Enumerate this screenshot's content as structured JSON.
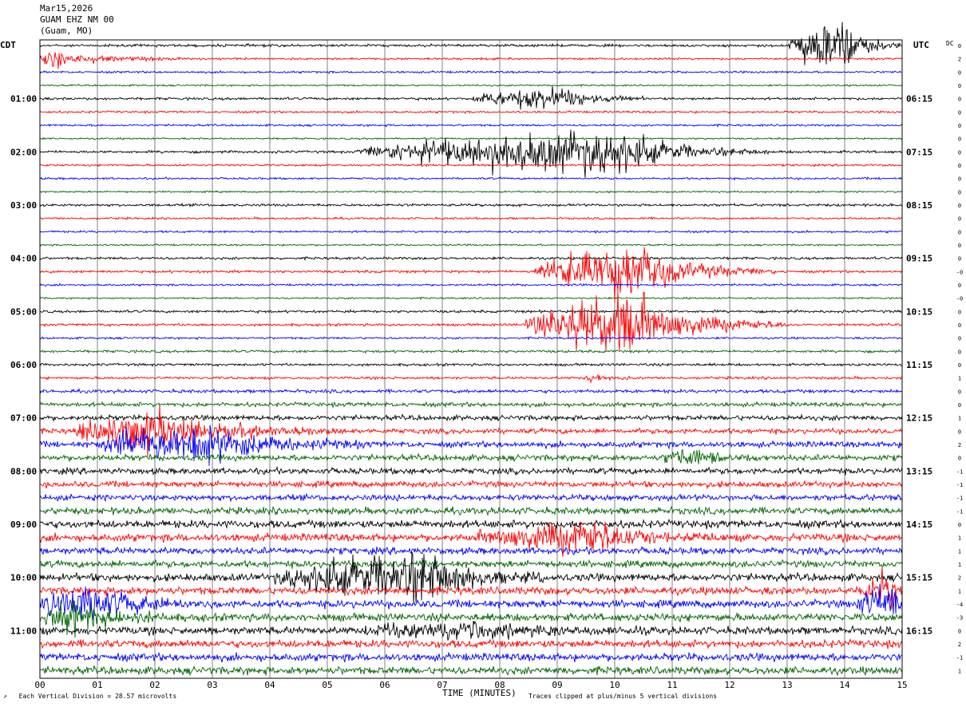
{
  "header": {
    "date": "Mar15,2026",
    "station": "GUAM EHZ NM 00",
    "location": "(Guam, MO)"
  },
  "left_axis_label": "CDT",
  "right_axis_label": "UTC",
  "dc_label": "DC",
  "footer": {
    "left": "Each Vertical Division =   28.57 microvolts",
    "right": "Traces clipped at plus/minus 5 vertical divisions"
  },
  "colors": {
    "black": "#000000",
    "red": "#ff0000",
    "blue": "#0000ff",
    "green": "#006400",
    "grid": "#808080"
  },
  "chart_data": {
    "type": "line",
    "xlabel": "TIME (MINUTES)",
    "xlim": [
      0,
      15
    ],
    "x_ticks": [
      "00",
      "01",
      "02",
      "03",
      "04",
      "05",
      "06",
      "07",
      "08",
      "09",
      "10",
      "11",
      "12",
      "13",
      "14",
      "15"
    ],
    "trace_count": 48,
    "minutes_per_trace": 15,
    "trace_color_cycle": [
      "black",
      "red",
      "blue",
      "green"
    ],
    "left_time_labels": [
      {
        "trace": 4,
        "label": "01:00"
      },
      {
        "trace": 8,
        "label": "02:00"
      },
      {
        "trace": 12,
        "label": "03:00"
      },
      {
        "trace": 16,
        "label": "04:00"
      },
      {
        "trace": 20,
        "label": "05:00"
      },
      {
        "trace": 24,
        "label": "06:00"
      },
      {
        "trace": 28,
        "label": "07:00"
      },
      {
        "trace": 32,
        "label": "08:00"
      },
      {
        "trace": 36,
        "label": "09:00"
      },
      {
        "trace": 40,
        "label": "10:00"
      },
      {
        "trace": 44,
        "label": "11:00"
      }
    ],
    "right_time_labels": [
      {
        "trace": 4,
        "label": "06:15"
      },
      {
        "trace": 8,
        "label": "07:15"
      },
      {
        "trace": 12,
        "label": "08:15"
      },
      {
        "trace": 16,
        "label": "09:15"
      },
      {
        "trace": 20,
        "label": "10:15"
      },
      {
        "trace": 24,
        "label": "11:15"
      },
      {
        "trace": 28,
        "label": "12:15"
      },
      {
        "trace": 32,
        "label": "13:15"
      },
      {
        "trace": 36,
        "label": "14:15"
      },
      {
        "trace": 40,
        "label": "15:15"
      },
      {
        "trace": 44,
        "label": "16:15"
      }
    ],
    "dc_offsets": [
      "0",
      "2",
      "0",
      "0",
      "0",
      "0",
      "0",
      "0",
      "0",
      "0",
      "0",
      "0",
      "0",
      "0",
      "0",
      "0",
      "0",
      "-0",
      "0",
      "-0",
      "0",
      "0",
      "0",
      "0",
      "0",
      "1",
      "0",
      "0",
      "1",
      "0",
      "2",
      "0",
      "-1",
      "-1",
      "-1",
      "-1",
      "0",
      "1",
      "1",
      "1",
      "2",
      "1",
      "-4",
      "-3",
      "0",
      "2",
      "-1",
      "1"
    ],
    "noise_levels": [
      1.5,
      1.2,
      1.2,
      1.0,
      1.5,
      1.2,
      1.2,
      1.0,
      1.5,
      1.2,
      1.2,
      1.0,
      1.5,
      1.2,
      1.2,
      1.0,
      1.5,
      1.5,
      1.2,
      1.0,
      1.5,
      1.5,
      1.2,
      1.5,
      1.5,
      1.5,
      2.0,
      2.5,
      3.0,
      3.0,
      3.5,
      3.5,
      3.5,
      3.5,
      3.5,
      4.0,
      4.5,
      4.5,
      4.0,
      4.0,
      4.5,
      4.5,
      4.5,
      4.5,
      4.5,
      4.5,
      4.5,
      4.5
    ],
    "events": [
      {
        "trace": 0,
        "start": 13.0,
        "peak": 13.9,
        "end": 15.0,
        "amplitude": 45
      },
      {
        "trace": 1,
        "start": 0.0,
        "peak": 0.1,
        "end": 2.5,
        "amplitude": 14
      },
      {
        "trace": 4,
        "start": 7.5,
        "peak": 9.0,
        "end": 10.6,
        "amplitude": 18
      },
      {
        "trace": 8,
        "start": 5.5,
        "peak": 10.0,
        "end": 12.7,
        "amplitude": 34
      },
      {
        "trace": 17,
        "start": 8.6,
        "peak": 10.3,
        "end": 12.8,
        "amplitude": 42
      },
      {
        "trace": 21,
        "start": 8.4,
        "peak": 10.2,
        "end": 13.0,
        "amplitude": 48
      },
      {
        "trace": 25,
        "start": 9.5,
        "peak": 9.6,
        "end": 10.3,
        "amplitude": 6
      },
      {
        "trace": 29,
        "start": 0.6,
        "peak": 1.8,
        "end": 5.2,
        "amplitude": 30
      },
      {
        "trace": 30,
        "start": 1.0,
        "peak": 2.6,
        "end": 5.8,
        "amplitude": 32
      },
      {
        "trace": 31,
        "start": 10.8,
        "peak": 11.4,
        "end": 12.6,
        "amplitude": 12
      },
      {
        "trace": 37,
        "start": 7.5,
        "peak": 9.7,
        "end": 11.8,
        "amplitude": 20
      },
      {
        "trace": 40,
        "start": 4.0,
        "peak": 6.8,
        "end": 8.8,
        "amplitude": 34
      },
      {
        "trace": 41,
        "start": 14.3,
        "peak": 14.8,
        "end": 15.0,
        "amplitude": 28
      },
      {
        "trace": 42,
        "start": 0.0,
        "peak": 0.8,
        "end": 3.0,
        "amplitude": 26
      },
      {
        "trace": 42,
        "start": 14.2,
        "peak": 14.9,
        "end": 15.0,
        "amplitude": 30
      },
      {
        "trace": 43,
        "start": 0.0,
        "peak": 0.6,
        "end": 2.3,
        "amplitude": 24
      },
      {
        "trace": 44,
        "start": 5.5,
        "peak": 7.5,
        "end": 10.8,
        "amplitude": 10
      }
    ]
  }
}
